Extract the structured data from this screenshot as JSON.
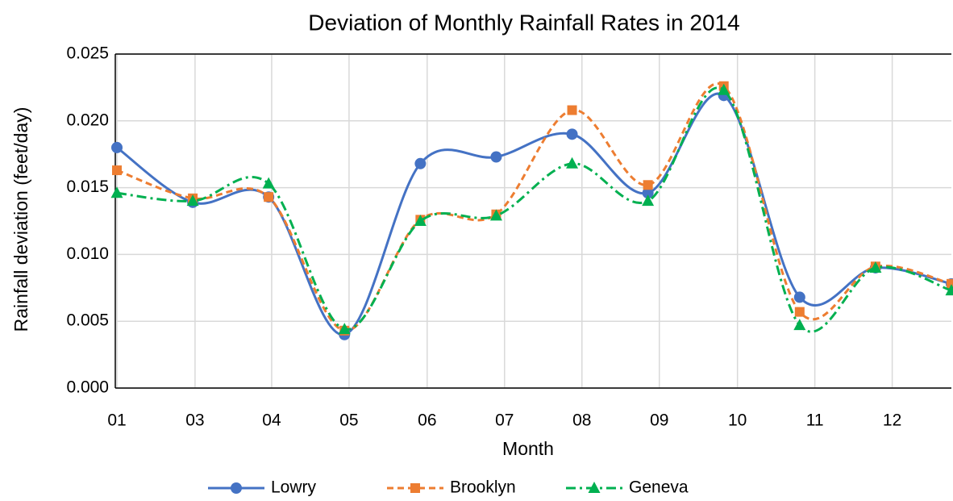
{
  "chart_data": {
    "type": "line",
    "title": "Deviation of Monthly Rainfall Rates in 2014",
    "x_label": "Month",
    "y_label": "Rainfall deviation (feet/day)",
    "x": [
      1,
      2,
      3,
      4,
      5,
      6,
      7,
      8,
      9,
      10,
      11,
      12
    ],
    "xlim": [
      1,
      12
    ],
    "xticks": [
      {
        "value": 1,
        "label": "01"
      },
      {
        "value": 2.03,
        "label": "03"
      },
      {
        "value": 3.04,
        "label": "04"
      },
      {
        "value": 4.06,
        "label": "05"
      },
      {
        "value": 5.09,
        "label": "06"
      },
      {
        "value": 6.11,
        "label": "07"
      },
      {
        "value": 7.13,
        "label": "08"
      },
      {
        "value": 8.15,
        "label": "09"
      },
      {
        "value": 9.18,
        "label": "10"
      },
      {
        "value": 10.2,
        "label": "11"
      },
      {
        "value": 11.22,
        "label": "12"
      }
    ],
    "ylim": [
      0,
      0.025
    ],
    "yticks": [
      {
        "value": 0,
        "label": "0.000"
      },
      {
        "value": 0.005,
        "label": "0.005"
      },
      {
        "value": 0.01,
        "label": "0.010"
      },
      {
        "value": 0.015,
        "label": "0.015"
      },
      {
        "value": 0.02,
        "label": "0.020"
      },
      {
        "value": 0.025,
        "label": "0.025"
      }
    ],
    "grid": true,
    "legend": "bottom",
    "series": [
      {
        "name": "Lowry",
        "color": "#4472c4",
        "dash": "solid",
        "marker": "circle",
        "values": [
          0.018,
          0.0139,
          0.0143,
          0.004,
          0.0168,
          0.0173,
          0.019,
          0.0146,
          0.0219,
          0.0068,
          0.009,
          0.0078
        ]
      },
      {
        "name": "Brooklyn",
        "color": "#ed7d31",
        "dash": "dashed",
        "marker": "square",
        "values": [
          0.0163,
          0.0142,
          0.0143,
          0.0043,
          0.0126,
          0.013,
          0.0208,
          0.0152,
          0.0226,
          0.0057,
          0.0091,
          0.0078
        ]
      },
      {
        "name": "Geneva",
        "color": "#00b050",
        "dash": "dashdot",
        "marker": "triangle",
        "values": [
          0.0146,
          0.014,
          0.0153,
          0.0044,
          0.0125,
          0.0129,
          0.0168,
          0.014,
          0.0223,
          0.0047,
          0.009,
          0.0073
        ]
      }
    ]
  }
}
